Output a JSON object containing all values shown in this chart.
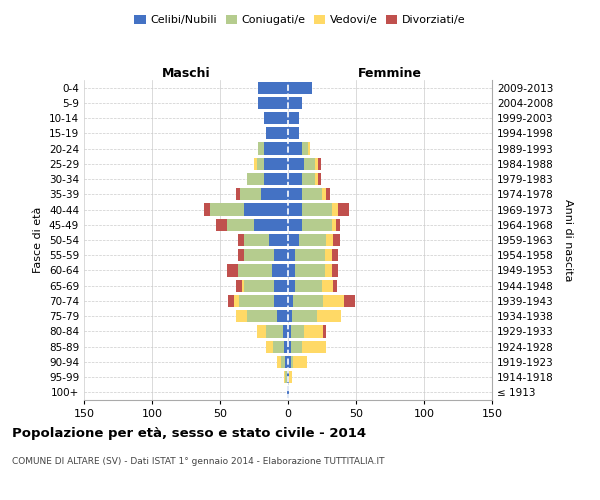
{
  "age_groups": [
    "100+",
    "95-99",
    "90-94",
    "85-89",
    "80-84",
    "75-79",
    "70-74",
    "65-69",
    "60-64",
    "55-59",
    "50-54",
    "45-49",
    "40-44",
    "35-39",
    "30-34",
    "25-29",
    "20-24",
    "15-19",
    "10-14",
    "5-9",
    "0-4"
  ],
  "birth_years": [
    "≤ 1913",
    "1914-1918",
    "1919-1923",
    "1924-1928",
    "1929-1933",
    "1934-1938",
    "1939-1943",
    "1944-1948",
    "1949-1953",
    "1954-1958",
    "1959-1963",
    "1964-1968",
    "1969-1973",
    "1974-1978",
    "1979-1983",
    "1984-1988",
    "1989-1993",
    "1994-1998",
    "1999-2003",
    "2004-2008",
    "2009-2013"
  ],
  "maschi": {
    "celibi": [
      1,
      1,
      2,
      3,
      4,
      8,
      10,
      10,
      12,
      10,
      14,
      25,
      32,
      20,
      18,
      18,
      18,
      16,
      18,
      22,
      22
    ],
    "coniugati": [
      0,
      1,
      3,
      8,
      12,
      22,
      26,
      22,
      25,
      22,
      18,
      20,
      25,
      15,
      12,
      5,
      4,
      0,
      0,
      0,
      0
    ],
    "vedovi": [
      0,
      1,
      3,
      5,
      7,
      8,
      4,
      2,
      0,
      0,
      0,
      0,
      0,
      0,
      0,
      2,
      0,
      0,
      0,
      0,
      0
    ],
    "divorziati": [
      0,
      0,
      0,
      0,
      0,
      0,
      4,
      4,
      8,
      5,
      5,
      8,
      5,
      3,
      0,
      0,
      0,
      0,
      0,
      0,
      0
    ]
  },
  "femmine": {
    "nubili": [
      1,
      1,
      2,
      2,
      2,
      3,
      4,
      5,
      5,
      5,
      8,
      10,
      10,
      10,
      10,
      12,
      10,
      8,
      8,
      10,
      18
    ],
    "coniugate": [
      0,
      0,
      2,
      8,
      10,
      18,
      22,
      20,
      22,
      22,
      20,
      22,
      22,
      15,
      10,
      8,
      5,
      0,
      0,
      0,
      0
    ],
    "vedove": [
      0,
      2,
      10,
      18,
      14,
      18,
      15,
      8,
      5,
      5,
      5,
      3,
      5,
      3,
      2,
      2,
      1,
      0,
      0,
      0,
      0
    ],
    "divorziate": [
      0,
      0,
      0,
      0,
      2,
      0,
      8,
      3,
      5,
      5,
      5,
      3,
      8,
      3,
      2,
      2,
      0,
      0,
      0,
      0,
      0
    ]
  },
  "colors": {
    "celibi_nubili": "#4472C4",
    "coniugati": "#B5CC8E",
    "vedovi": "#FFD966",
    "divorziati": "#C0504D"
  },
  "title": "Popolazione per età, sesso e stato civile - 2014",
  "subtitle": "COMUNE DI ALTARE (SV) - Dati ISTAT 1° gennaio 2014 - Elaborazione TUTTITALIA.IT",
  "ylabel_left": "Fasce di età",
  "ylabel_right": "Anni di nascita",
  "xlim": 150,
  "bg_color": "#ffffff",
  "grid_color": "#cccccc",
  "maschi_label": "Maschi",
  "femmine_label": "Femmine",
  "legend_labels": [
    "Celibi/Nubili",
    "Coniugati/e",
    "Vedovi/e",
    "Divorziati/e"
  ]
}
